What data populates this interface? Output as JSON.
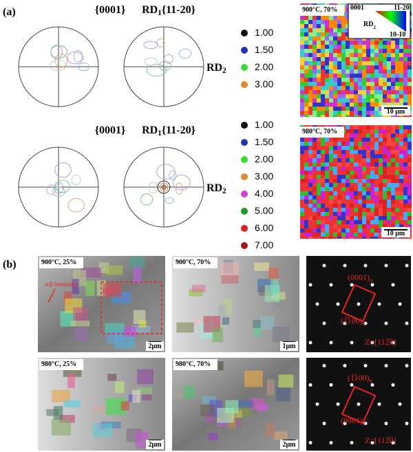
{
  "panel_a": {
    "label": "(a)",
    "rows": [
      {
        "pf1_title": "{0001}",
        "pf2_rd": "RD",
        "pf2_rd_sub": "1",
        "pf2_title": "{11-20}",
        "rd2": "RD",
        "rd2_sub": "2",
        "legend": [
          {
            "label": "1.00",
            "color": "#111111"
          },
          {
            "label": "1.50",
            "color": "#2233bb"
          },
          {
            "label": "2.00",
            "color": "#33dd33"
          },
          {
            "label": "3.00",
            "color": "#e08a30"
          }
        ],
        "map": {
          "label": "900°C, 70%",
          "scale": "10 μm",
          "key": {
            "top_left": "0001",
            "top_right": "11-20",
            "bottom_right": "10-10",
            "center": "RD",
            "center_sub": "2"
          }
        }
      },
      {
        "pf1_title": "{0001}",
        "pf2_rd": "RD",
        "pf2_rd_sub": "1",
        "pf2_title": "{11-20}",
        "rd2": "RD",
        "rd2_sub": "2",
        "legend": [
          {
            "label": "1.00",
            "color": "#111111"
          },
          {
            "label": "1.50",
            "color": "#2233bb"
          },
          {
            "label": "2.00",
            "color": "#33dd33"
          },
          {
            "label": "3.00",
            "color": "#e08a30"
          },
          {
            "label": "4.00",
            "color": "#d040d0"
          },
          {
            "label": "5.00",
            "color": "#1a9a2a"
          },
          {
            "label": "6.00",
            "color": "#e02020"
          },
          {
            "label": "7.00",
            "color": "#a01818"
          }
        ],
        "map": {
          "label": "980°C, 70%",
          "scale": "10 μm"
        }
      }
    ]
  },
  "panel_b": {
    "label": "(b)",
    "rows": [
      {
        "images": [
          {
            "label": "900°C, 25%",
            "scale": "2μm",
            "annotation": "α/β boundary"
          },
          {
            "label": "900°C, 70%",
            "scale": "1μm"
          }
        ],
        "diffraction": {
          "spot_a": "(0001)",
          "spot_a_sub": "α",
          "spot_b": "(1̅100)",
          "spot_b_sub": "α",
          "zone": "Z=[112̅0]"
        }
      },
      {
        "images": [
          {
            "label": "980°C, 25%",
            "scale": "2μm"
          },
          {
            "label": "980°C, 70%",
            "scale": "2μm"
          }
        ],
        "diffraction": {
          "spot_a": "(1̅100)",
          "spot_a_sub": "α",
          "spot_b": "(0001)",
          "spot_b_sub": "α",
          "zone": "Z=[112̅0]"
        }
      }
    ]
  }
}
